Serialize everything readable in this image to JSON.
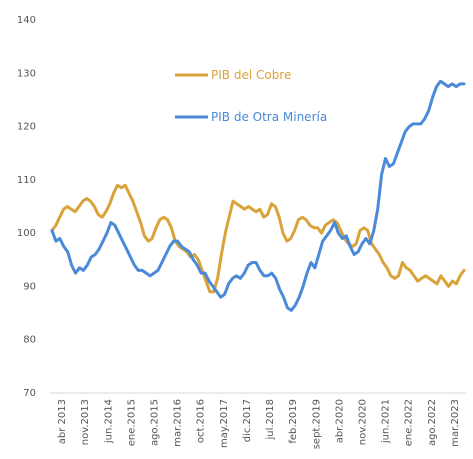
{
  "chart_data": {
    "type": "line",
    "title": "",
    "xlabel": "",
    "ylabel": "",
    "ylim": [
      70,
      140
    ],
    "yticks": [
      70,
      80,
      90,
      100,
      110,
      120,
      130,
      140
    ],
    "grid": false,
    "legend_position": "top-center",
    "x_tick_labels": [
      "abr 2013",
      "nov.2013",
      "jun.2014",
      "ene.2015",
      "ago.2015",
      "mar.2016",
      "oct.2016",
      "may.2017",
      "dic.2017",
      "jul.2018",
      "feb.2019",
      "sept.2019",
      "abr.2020",
      "nov.2020",
      "jun.2021",
      "ene.2022",
      "ago.2022",
      "mar.2023"
    ],
    "colors": {
      "cobre": "#D9A33A",
      "otra": "#4A8AD8"
    },
    "series": [
      {
        "name": "PIB del Cobre",
        "values": [
          100.5,
          101.5,
          103,
          104.5,
          105,
          104.5,
          104,
          105,
          106,
          106.5,
          106,
          105,
          103.5,
          103,
          104,
          105.5,
          107.5,
          109,
          108.5,
          109,
          107.5,
          106,
          104,
          102,
          99.5,
          98.5,
          99,
          101,
          102.5,
          103,
          102.5,
          101,
          98.5,
          97.5,
          97,
          96.5,
          95.5,
          96,
          95,
          93,
          91,
          89,
          89,
          91.5,
          96,
          100,
          103,
          106,
          105.5,
          105,
          104.5,
          105,
          104.5,
          104,
          104.5,
          103,
          103.5,
          105.5,
          105,
          103,
          100,
          98.5,
          99,
          100.5,
          102.5,
          103,
          102.5,
          101.5,
          101,
          101,
          100,
          101.5,
          102,
          102.5,
          102,
          100.5,
          99,
          98,
          97.5,
          98,
          100.5,
          101,
          100.5,
          98,
          97,
          96,
          94.5,
          93.5,
          92,
          91.5,
          92,
          94.5,
          93.5,
          93,
          92,
          91,
          91.5,
          92,
          91.5,
          91,
          90.5,
          92,
          91,
          90,
          91,
          90.5,
          92,
          93
        ]
      },
      {
        "name": "PIB de Otra Minería",
        "values": [
          100.5,
          98.5,
          99,
          97.5,
          96.5,
          94,
          92.5,
          93.5,
          93,
          94,
          95.5,
          96,
          97,
          98.5,
          100,
          102,
          101.5,
          100,
          98.5,
          97,
          95.5,
          94,
          93,
          93,
          92.5,
          92,
          92.5,
          93,
          94.5,
          96,
          97.5,
          98.5,
          98.5,
          97.5,
          97,
          96.5,
          95,
          94,
          92.5,
          92.5,
          91,
          90,
          89,
          88,
          88.5,
          90.5,
          91.5,
          92,
          91.5,
          92.5,
          94,
          94.5,
          94.5,
          93,
          92,
          92,
          92.5,
          91.5,
          89.5,
          88,
          86,
          85.5,
          86.5,
          88,
          90,
          92.5,
          94.5,
          93.5,
          96,
          98.5,
          99.5,
          100.5,
          102,
          100,
          99,
          99.5,
          97.5,
          96,
          96.5,
          98,
          99,
          98,
          100.5,
          104.5,
          111,
          114,
          112.5,
          113,
          115,
          117,
          119,
          120,
          120.5,
          120.5,
          120.5,
          121.5,
          123,
          125.5,
          127.5,
          128.5,
          128,
          127.5,
          128,
          127.5,
          128,
          128
        ]
      }
    ]
  }
}
